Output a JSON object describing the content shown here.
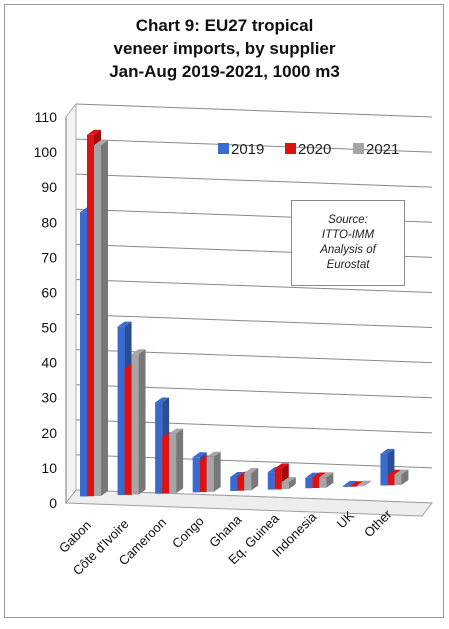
{
  "chart_data": {
    "type": "bar",
    "title_lines": [
      "Chart 9: EU27 tropical",
      "veneer imports, by supplier",
      "Jan-Aug 2019-2021, 1000 m3"
    ],
    "categories": [
      "Gabon",
      "Côte d'Ivoire",
      "Cameroon",
      "Congo",
      "Ghana",
      "Eq. Guinea",
      "Indonesia",
      "UK",
      "Other"
    ],
    "series": [
      {
        "name": "2019",
        "color": "#3a6bd0",
        "values": [
          81,
          48,
          26,
          10,
          4,
          5,
          3,
          0.3,
          9
        ]
      },
      {
        "name": "2020",
        "color": "#dd1111",
        "values": [
          103,
          36,
          16,
          9,
          4,
          6,
          3,
          0.1,
          3
        ]
      },
      {
        "name": "2021",
        "color": "#a6a6a6",
        "values": [
          100,
          40,
          17,
          10,
          5,
          2,
          3,
          0.2,
          3
        ]
      }
    ],
    "ylim": [
      0,
      110
    ],
    "yticks": [
      0,
      10,
      20,
      30,
      40,
      50,
      60,
      70,
      80,
      90,
      100,
      110
    ],
    "grid": true,
    "legend_position": "top-right",
    "annotation_lines": [
      "Source:",
      "ITTO-IMM",
      "Analysis of",
      "Eurostat"
    ]
  }
}
